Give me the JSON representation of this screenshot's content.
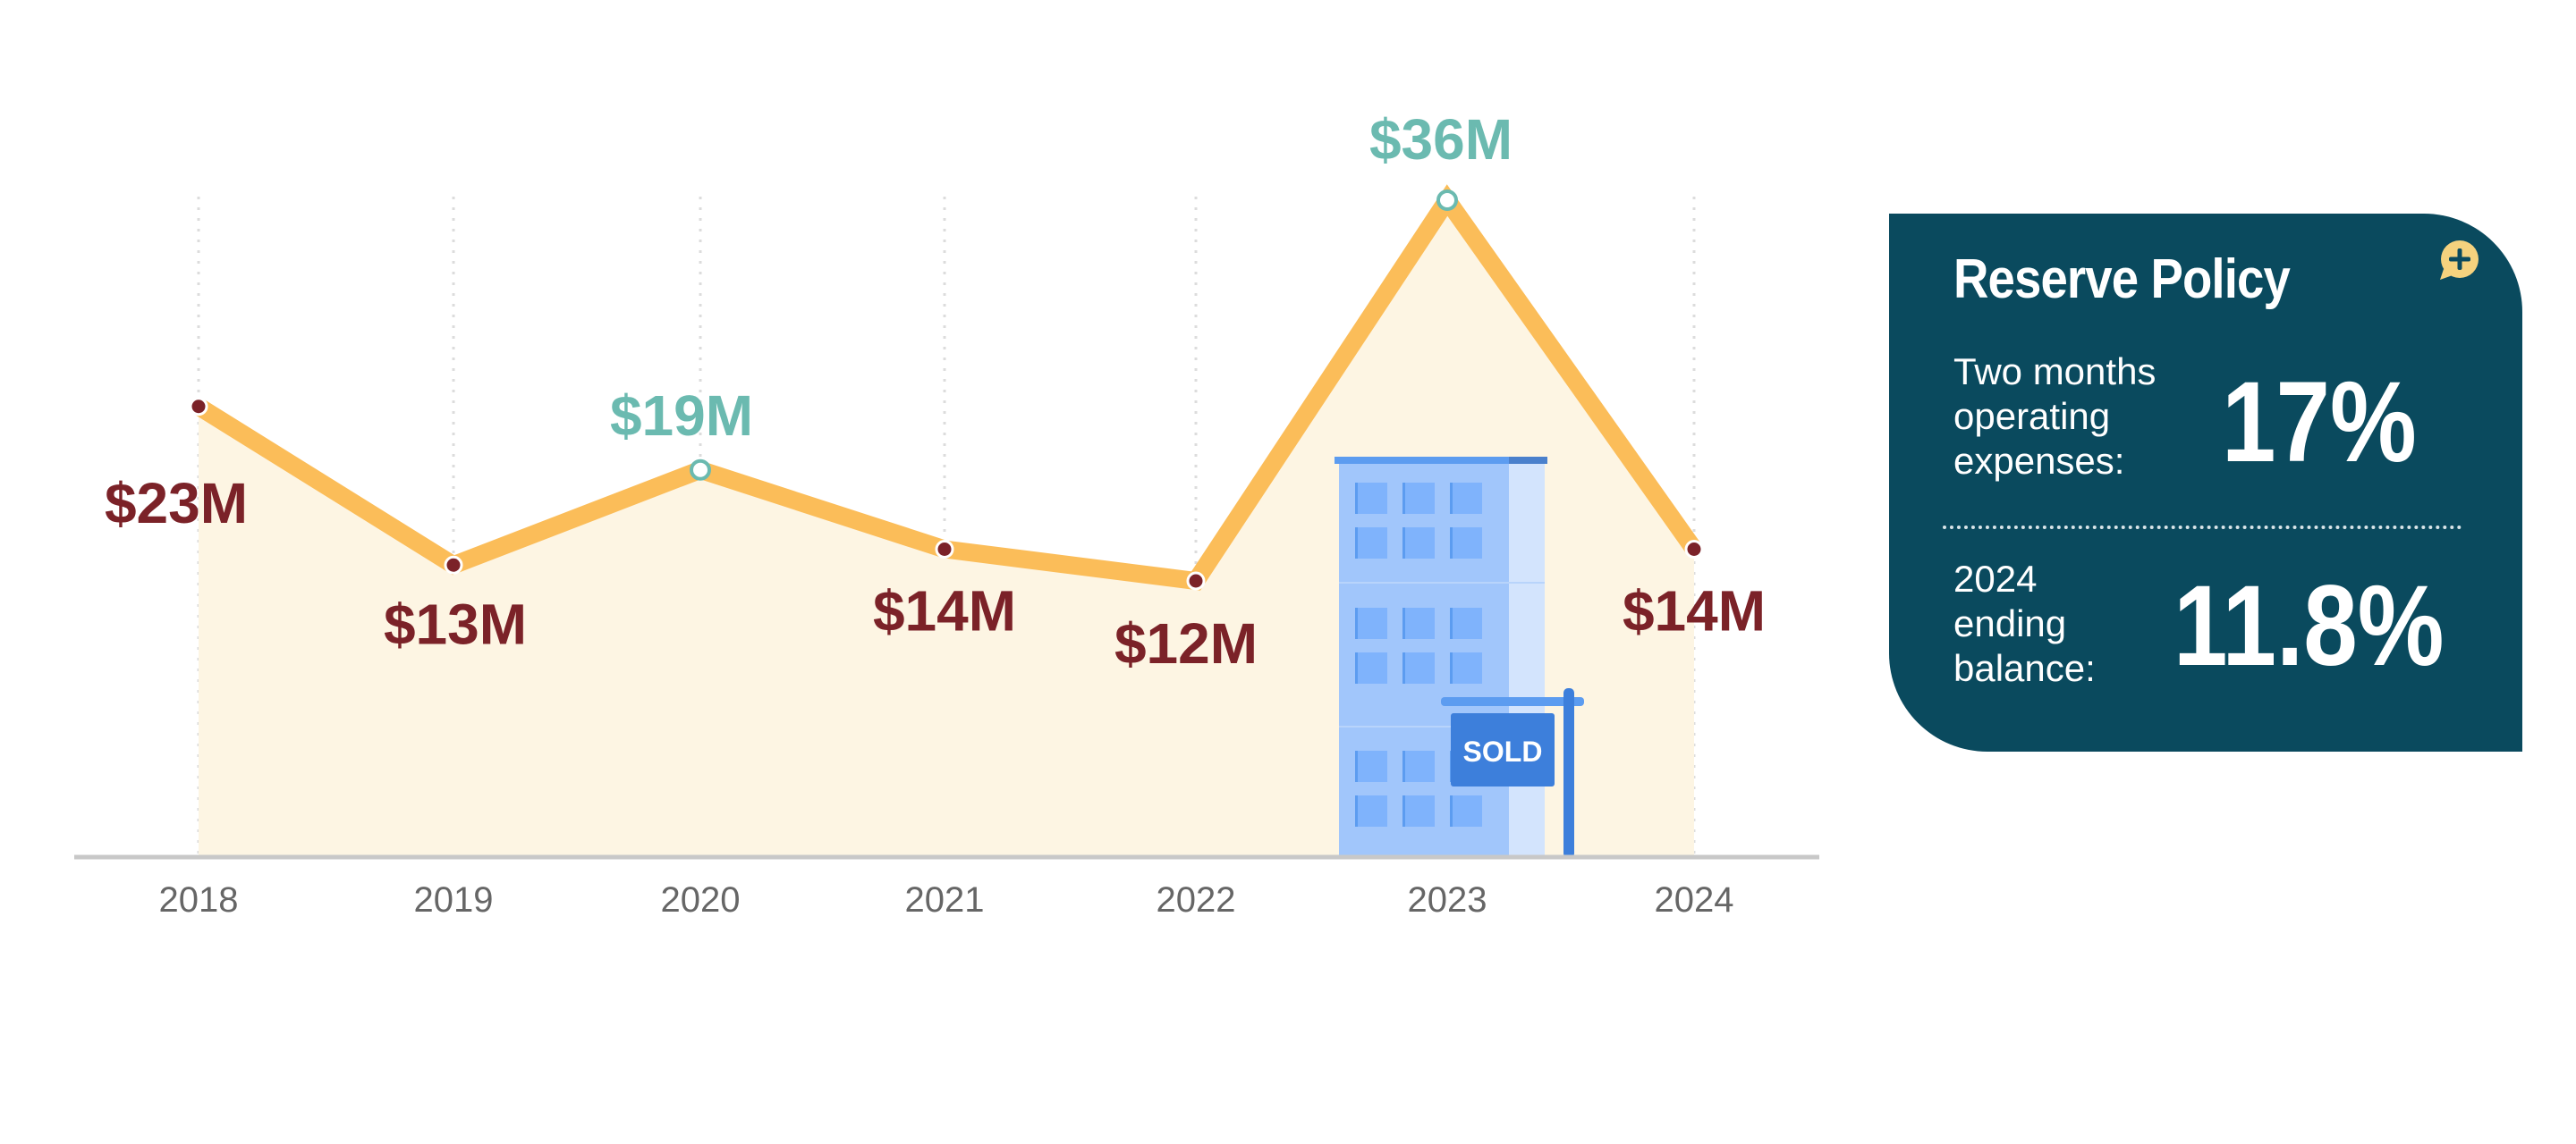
{
  "chart_data": {
    "type": "line",
    "categories": [
      "2018",
      "2019",
      "2020",
      "2021",
      "2022",
      "2023",
      "2024"
    ],
    "values": [
      23,
      13,
      19,
      14,
      12,
      36,
      14
    ],
    "data_labels": [
      "$23M",
      "$13M",
      "$19M",
      "$14M",
      "$12M",
      "$36M",
      "$14M"
    ],
    "highlight": [
      false,
      false,
      true,
      false,
      false,
      true,
      false
    ],
    "area_fill": true,
    "grid": "vertical dotted",
    "annotation": "SOLD",
    "colors": {
      "line": "#fbbd59",
      "area": "#fdf5e3",
      "label": "#7b2228",
      "highlight": "#6bbab0",
      "grid": "#dcdcdc",
      "axis": "#c8c8c8",
      "tick": "#666666"
    }
  },
  "card": {
    "title": "Reserve Policy",
    "icon": "plus-speech-bubble-icon",
    "rows": [
      {
        "label": [
          "Two months",
          "operating",
          "expenses:"
        ],
        "value": "17%"
      },
      {
        "label": [
          "2024",
          "ending",
          "balance:"
        ],
        "value": "11.8%"
      }
    ]
  }
}
